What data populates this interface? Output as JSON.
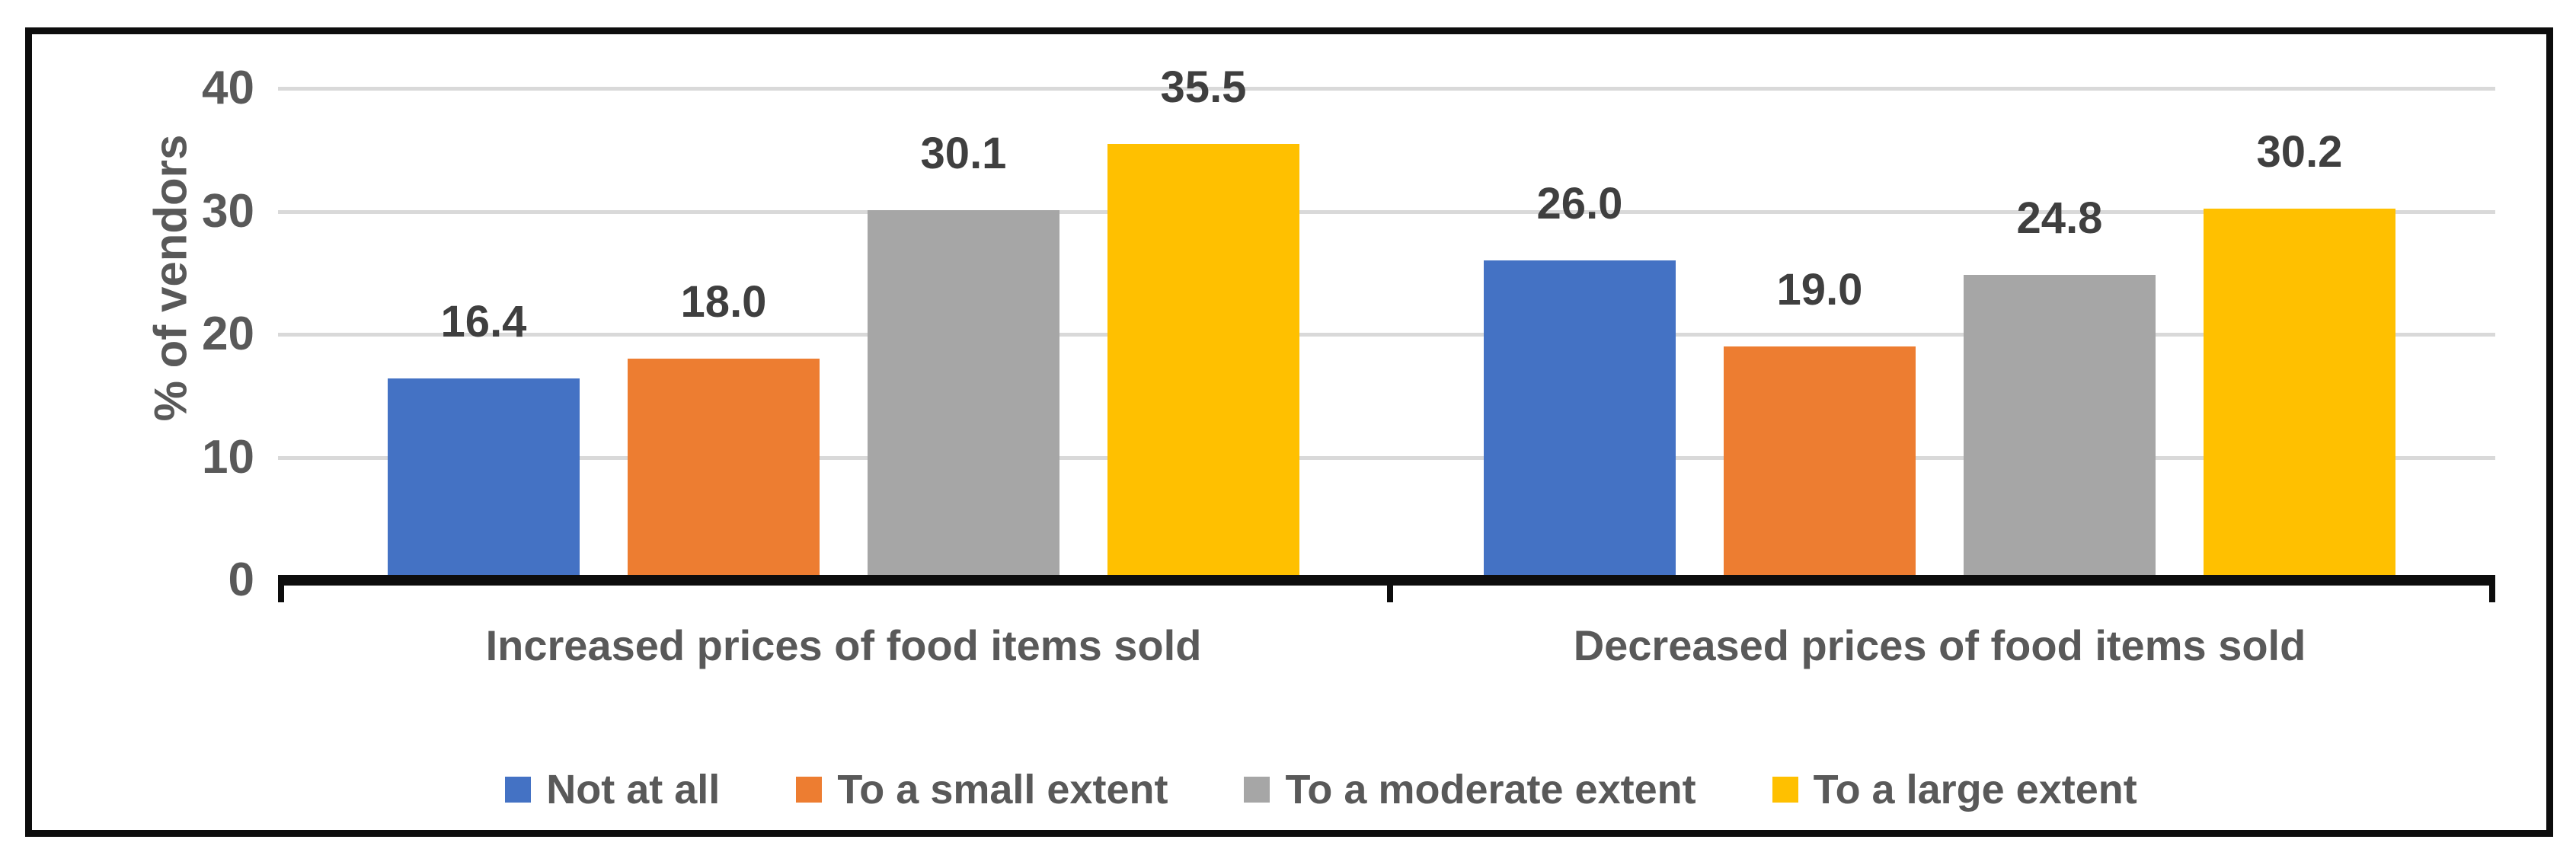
{
  "chart_data": {
    "type": "bar",
    "title": "",
    "ylabel": "% of vendors",
    "xlabel": "",
    "ylim": [
      0,
      40
    ],
    "yticks": [
      0,
      10,
      20,
      30,
      40
    ],
    "grid": "horizontal",
    "grid_color": "#D9D9D9",
    "axis_color": "#0D0D0D",
    "legend_position": "bottom",
    "categories": [
      "Increased prices of food items sold",
      "Decreased prices of food items sold"
    ],
    "series": [
      {
        "name": "Not at all",
        "color": "#4472C4",
        "values": [
          16.4,
          26.0
        ],
        "labels": [
          "16.4",
          "26.0"
        ]
      },
      {
        "name": "To a small extent",
        "color": "#ED7D31",
        "values": [
          18.0,
          19.0
        ],
        "labels": [
          "18.0",
          "19.0"
        ]
      },
      {
        "name": "To a moderate extent",
        "color": "#A6A6A6",
        "values": [
          30.1,
          24.8
        ],
        "labels": [
          "30.1",
          "24.8"
        ]
      },
      {
        "name": "To a large extent",
        "color": "#FFC000",
        "values": [
          35.5,
          30.2
        ],
        "labels": [
          "35.5",
          "30.2"
        ]
      }
    ]
  }
}
